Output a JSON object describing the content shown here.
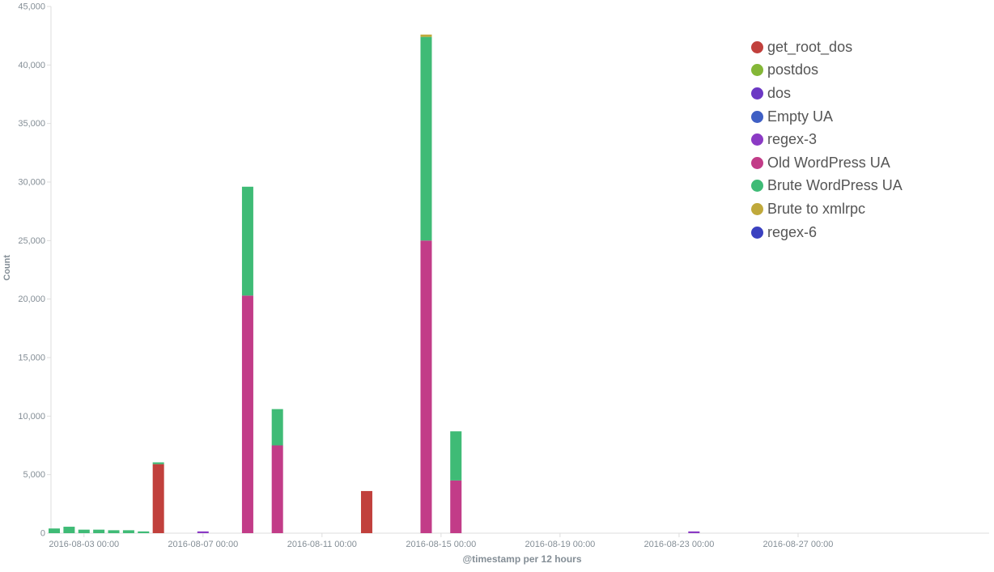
{
  "chart_data": {
    "type": "bar",
    "stacked": true,
    "title": "",
    "xlabel": "@timestamp per 12 hours",
    "ylabel": "Count",
    "ylim": [
      0,
      45000
    ],
    "yticks": [
      "0",
      "5,000",
      "10,000",
      "15,000",
      "20,000",
      "25,000",
      "30,000",
      "35,000",
      "40,000",
      "45,000"
    ],
    "xticks": [
      "2016-08-03 00:00",
      "2016-08-07 00:00",
      "2016-08-11 00:00",
      "2016-08-15 00:00",
      "2016-08-19 00:00",
      "2016-08-23 00:00",
      "2016-08-27 00:00"
    ],
    "x_interval": "12 hours",
    "x_start": "2016-08-02 00:00",
    "x_end": "2016-08-31 00:00",
    "grid": false,
    "legend_position": "top-right",
    "series": [
      {
        "name": "get_root_dos",
        "color": "#c1403c",
        "points": [
          [
            "2016-08-05 12:00",
            5900
          ],
          [
            "2016-08-12 12:00",
            3600
          ]
        ]
      },
      {
        "name": "postdos",
        "color": "#84b737",
        "points": []
      },
      {
        "name": "dos",
        "color": "#6c38c4",
        "points": []
      },
      {
        "name": "Empty UA",
        "color": "#3f5fc4",
        "points": []
      },
      {
        "name": "regex-3",
        "color": "#8b3ac4",
        "points": [
          [
            "2016-08-07 00:00",
            150
          ],
          [
            "2016-08-23 12:00",
            150
          ]
        ]
      },
      {
        "name": "Old WordPress UA",
        "color": "#c23c88",
        "points": [
          [
            "2016-08-08 12:00",
            20300
          ],
          [
            "2016-08-09 12:00",
            7500
          ],
          [
            "2016-08-14 12:00",
            25000
          ],
          [
            "2016-08-15 12:00",
            4500
          ]
        ]
      },
      {
        "name": "Brute WordPress UA",
        "color": "#3fbb76",
        "points": [
          [
            "2016-08-02 00:00",
            400
          ],
          [
            "2016-08-02 12:00",
            550
          ],
          [
            "2016-08-03 00:00",
            300
          ],
          [
            "2016-08-03 12:00",
            300
          ],
          [
            "2016-08-04 00:00",
            250
          ],
          [
            "2016-08-04 12:00",
            250
          ],
          [
            "2016-08-05 00:00",
            150
          ],
          [
            "2016-08-05 12:00",
            150
          ],
          [
            "2016-08-08 12:00",
            9300
          ],
          [
            "2016-08-09 12:00",
            3100
          ],
          [
            "2016-08-14 12:00",
            17400
          ],
          [
            "2016-08-15 12:00",
            4200
          ]
        ]
      },
      {
        "name": "Brute to xmlrpc",
        "color": "#c0a93b",
        "points": [
          [
            "2016-08-14 12:00",
            200
          ]
        ]
      },
      {
        "name": "regex-6",
        "color": "#3b41c0",
        "points": []
      }
    ]
  }
}
